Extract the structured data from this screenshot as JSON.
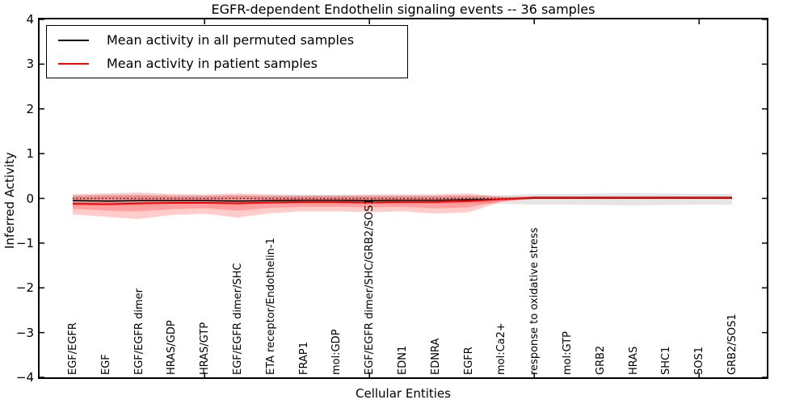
{
  "figure": {
    "title": "EGFR-dependent Endothelin signaling events -- 36 samples",
    "xlabel": "Cellular Entities",
    "ylabel": "Inferred Activity"
  },
  "legend": {
    "position": "upper left",
    "items": [
      {
        "label": "Mean activity in all permuted samples",
        "color": "#000000"
      },
      {
        "label": "Mean activity in patient samples",
        "color": "#ff0000"
      }
    ]
  },
  "chart_data": {
    "type": "line",
    "title": "EGFR-dependent Endothelin signaling events -- 36 samples",
    "xlabel": "Cellular Entities",
    "ylabel": "Inferred Activity",
    "ylim": [
      -4,
      4
    ],
    "yticks": [
      4,
      3,
      2,
      1,
      0,
      -1,
      -2,
      -3,
      -4
    ],
    "grid": false,
    "legend_position": "upper left",
    "x": [
      1,
      2,
      3,
      4,
      5,
      6,
      7,
      8,
      9,
      10,
      11,
      12,
      13,
      14,
      15,
      16,
      17,
      18,
      19,
      20,
      21
    ],
    "xticks_major": [
      5,
      10,
      15,
      20
    ],
    "categories": [
      "EGF/EGFR",
      "EGF",
      "EGF/EGFR dimer",
      "HRAS/GDP",
      "HRAS/GTP",
      "EGF/EGFR dimer/SHC",
      "ETA receptor/Endothelin-1",
      "FRAP1",
      "mol:GDP",
      "EGF/EGFR dimer/SHC/GRB2/SOS1",
      "EDN1",
      "EDNRA",
      "EGFR",
      "mol:Ca2+",
      "response to oxidative stress",
      "mol:GTP",
      "GRB2",
      "HRAS",
      "SHC1",
      "SOS1",
      "GRB2/SOS1"
    ],
    "series": [
      {
        "name": "Mean activity in all permuted samples",
        "color": "#000000",
        "style": "solid",
        "width": 1.5,
        "values": [
          -0.05,
          -0.06,
          -0.05,
          -0.05,
          -0.05,
          -0.06,
          -0.05,
          -0.04,
          -0.04,
          -0.05,
          -0.04,
          -0.04,
          -0.03,
          -0.02,
          0.005,
          0.005,
          0.005,
          0.005,
          0.005,
          0.005,
          0.005
        ]
      },
      {
        "name": "Mean activity in patient samples",
        "color": "#ff0000",
        "style": "solid",
        "width": 2,
        "values": [
          -0.12,
          -0.13,
          -0.11,
          -0.1,
          -0.1,
          -0.11,
          -0.09,
          -0.08,
          -0.08,
          -0.09,
          -0.08,
          -0.08,
          -0.06,
          -0.02,
          0.02,
          0.02,
          0.02,
          0.02,
          0.02,
          0.02,
          0.02
        ]
      },
      {
        "name": "zero reference (dotted)",
        "color": "#000000",
        "style": "dotted",
        "width": 1.3,
        "values": [
          0,
          0,
          0,
          0,
          0,
          0,
          0,
          0,
          0,
          0,
          0,
          0,
          0,
          0,
          0,
          0,
          0,
          0,
          0,
          0,
          0
        ]
      }
    ],
    "bands": [
      {
        "name": "permuted samples std band",
        "color": "#000000",
        "alpha": 0.1,
        "upper": [
          0.07,
          0.08,
          0.08,
          0.07,
          0.06,
          0.07,
          0.06,
          0.06,
          0.06,
          0.06,
          0.06,
          0.06,
          0.06,
          0.07,
          0.1,
          0.1,
          0.11,
          0.12,
          0.11,
          0.1,
          0.1
        ],
        "lower": [
          -0.13,
          -0.14,
          -0.14,
          -0.13,
          -0.12,
          -0.13,
          -0.12,
          -0.11,
          -0.11,
          -0.12,
          -0.11,
          -0.11,
          -0.11,
          -0.12,
          -0.14,
          -0.14,
          -0.15,
          -0.16,
          -0.15,
          -0.14,
          -0.14
        ]
      },
      {
        "name": "patient samples std band (outer)",
        "color": "#ff0000",
        "alpha": 0.2,
        "upper": [
          0.09,
          0.11,
          0.13,
          0.1,
          0.09,
          0.11,
          0.09,
          0.08,
          0.08,
          0.09,
          0.09,
          0.09,
          0.11,
          0.04,
          0.04,
          0.04,
          0.04,
          0.04,
          0.04,
          0.04,
          0.04
        ],
        "lower": [
          -0.36,
          -0.41,
          -0.46,
          -0.37,
          -0.34,
          -0.43,
          -0.33,
          -0.29,
          -0.29,
          -0.31,
          -0.29,
          -0.34,
          -0.31,
          -0.08,
          0.0,
          0.0,
          0.0,
          0.0,
          0.0,
          0.0,
          -0.01
        ]
      },
      {
        "name": "patient samples std band (inner)",
        "color": "#ff0000",
        "alpha": 0.22,
        "upper": [
          0.05,
          0.06,
          0.07,
          0.05,
          0.05,
          0.06,
          0.05,
          0.05,
          0.05,
          0.05,
          0.05,
          0.05,
          0.06,
          0.03,
          0.035,
          0.035,
          0.035,
          0.035,
          0.035,
          0.035,
          0.035
        ],
        "lower": [
          -0.23,
          -0.27,
          -0.29,
          -0.24,
          -0.22,
          -0.27,
          -0.21,
          -0.19,
          -0.19,
          -0.2,
          -0.19,
          -0.22,
          -0.2,
          -0.06,
          0.005,
          0.005,
          0.005,
          0.005,
          0.005,
          0.005,
          0.0
        ]
      }
    ]
  },
  "axes": {
    "ytick_labels": [
      "4",
      "3",
      "2",
      "1",
      "0",
      "−1",
      "−2",
      "−3",
      "−4"
    ]
  }
}
